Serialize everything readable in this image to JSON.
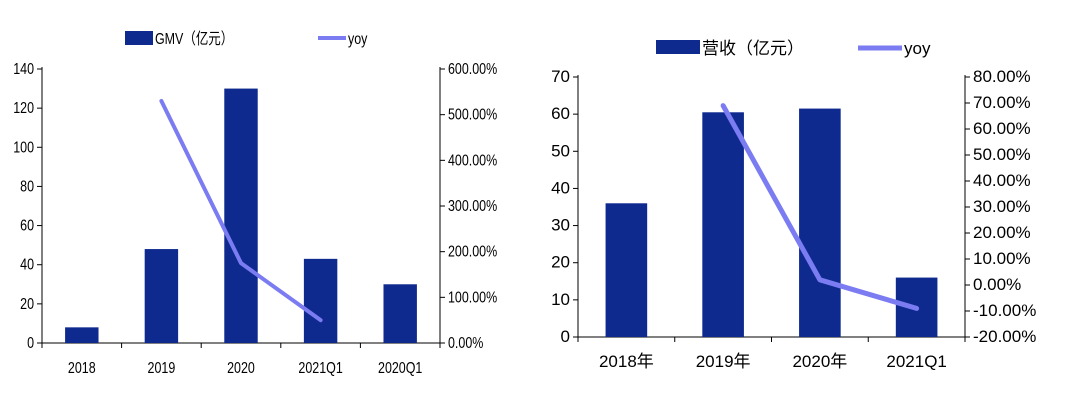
{
  "chart_data": [
    {
      "type": "bar",
      "categories": [
        "2018",
        "2019",
        "2020",
        "2021Q1",
        "2020Q1"
      ],
      "series": [
        {
          "name": "GMV（亿元）",
          "axis": "left",
          "type": "bar",
          "color": "#0f2a8f",
          "values": [
            8,
            48,
            130,
            43,
            30
          ]
        },
        {
          "name": "yoy",
          "axis": "right",
          "type": "line",
          "color": "#7b7cf2",
          "values": [
            null,
            5.3,
            1.75,
            0.5,
            null
          ]
        }
      ],
      "left_ticks": [
        "0",
        "20",
        "40",
        "60",
        "80",
        "100",
        "120",
        "140"
      ],
      "right_ticks": [
        "0.00%",
        "100.00%",
        "200.00%",
        "300.00%",
        "400.00%",
        "500.00%",
        "600.00%"
      ],
      "ylim_left": [
        0,
        140
      ],
      "ylim_right": [
        0,
        6.0
      ],
      "legend_position": "top"
    },
    {
      "type": "bar",
      "categories": [
        "2018年",
        "2019年",
        "2020年",
        "2021Q1"
      ],
      "series": [
        {
          "name": "营收（亿元）",
          "axis": "left",
          "type": "bar",
          "color": "#0f2a8f",
          "values": [
            36,
            60.5,
            61.5,
            16
          ]
        },
        {
          "name": "yoy",
          "axis": "right",
          "type": "line",
          "color": "#7b7cf2",
          "values": [
            null,
            0.69,
            0.02,
            -0.09
          ]
        }
      ],
      "left_ticks": [
        "0",
        "10",
        "20",
        "30",
        "40",
        "50",
        "60",
        "70"
      ],
      "right_ticks": [
        "-20.00%",
        "-10.00%",
        "0.00%",
        "10.00%",
        "20.00%",
        "30.00%",
        "40.00%",
        "50.00%",
        "60.00%",
        "70.00%",
        "80.00%"
      ],
      "ylim_left": [
        0,
        70
      ],
      "ylim_right": [
        -0.2,
        0.8
      ],
      "legend_position": "top"
    }
  ]
}
